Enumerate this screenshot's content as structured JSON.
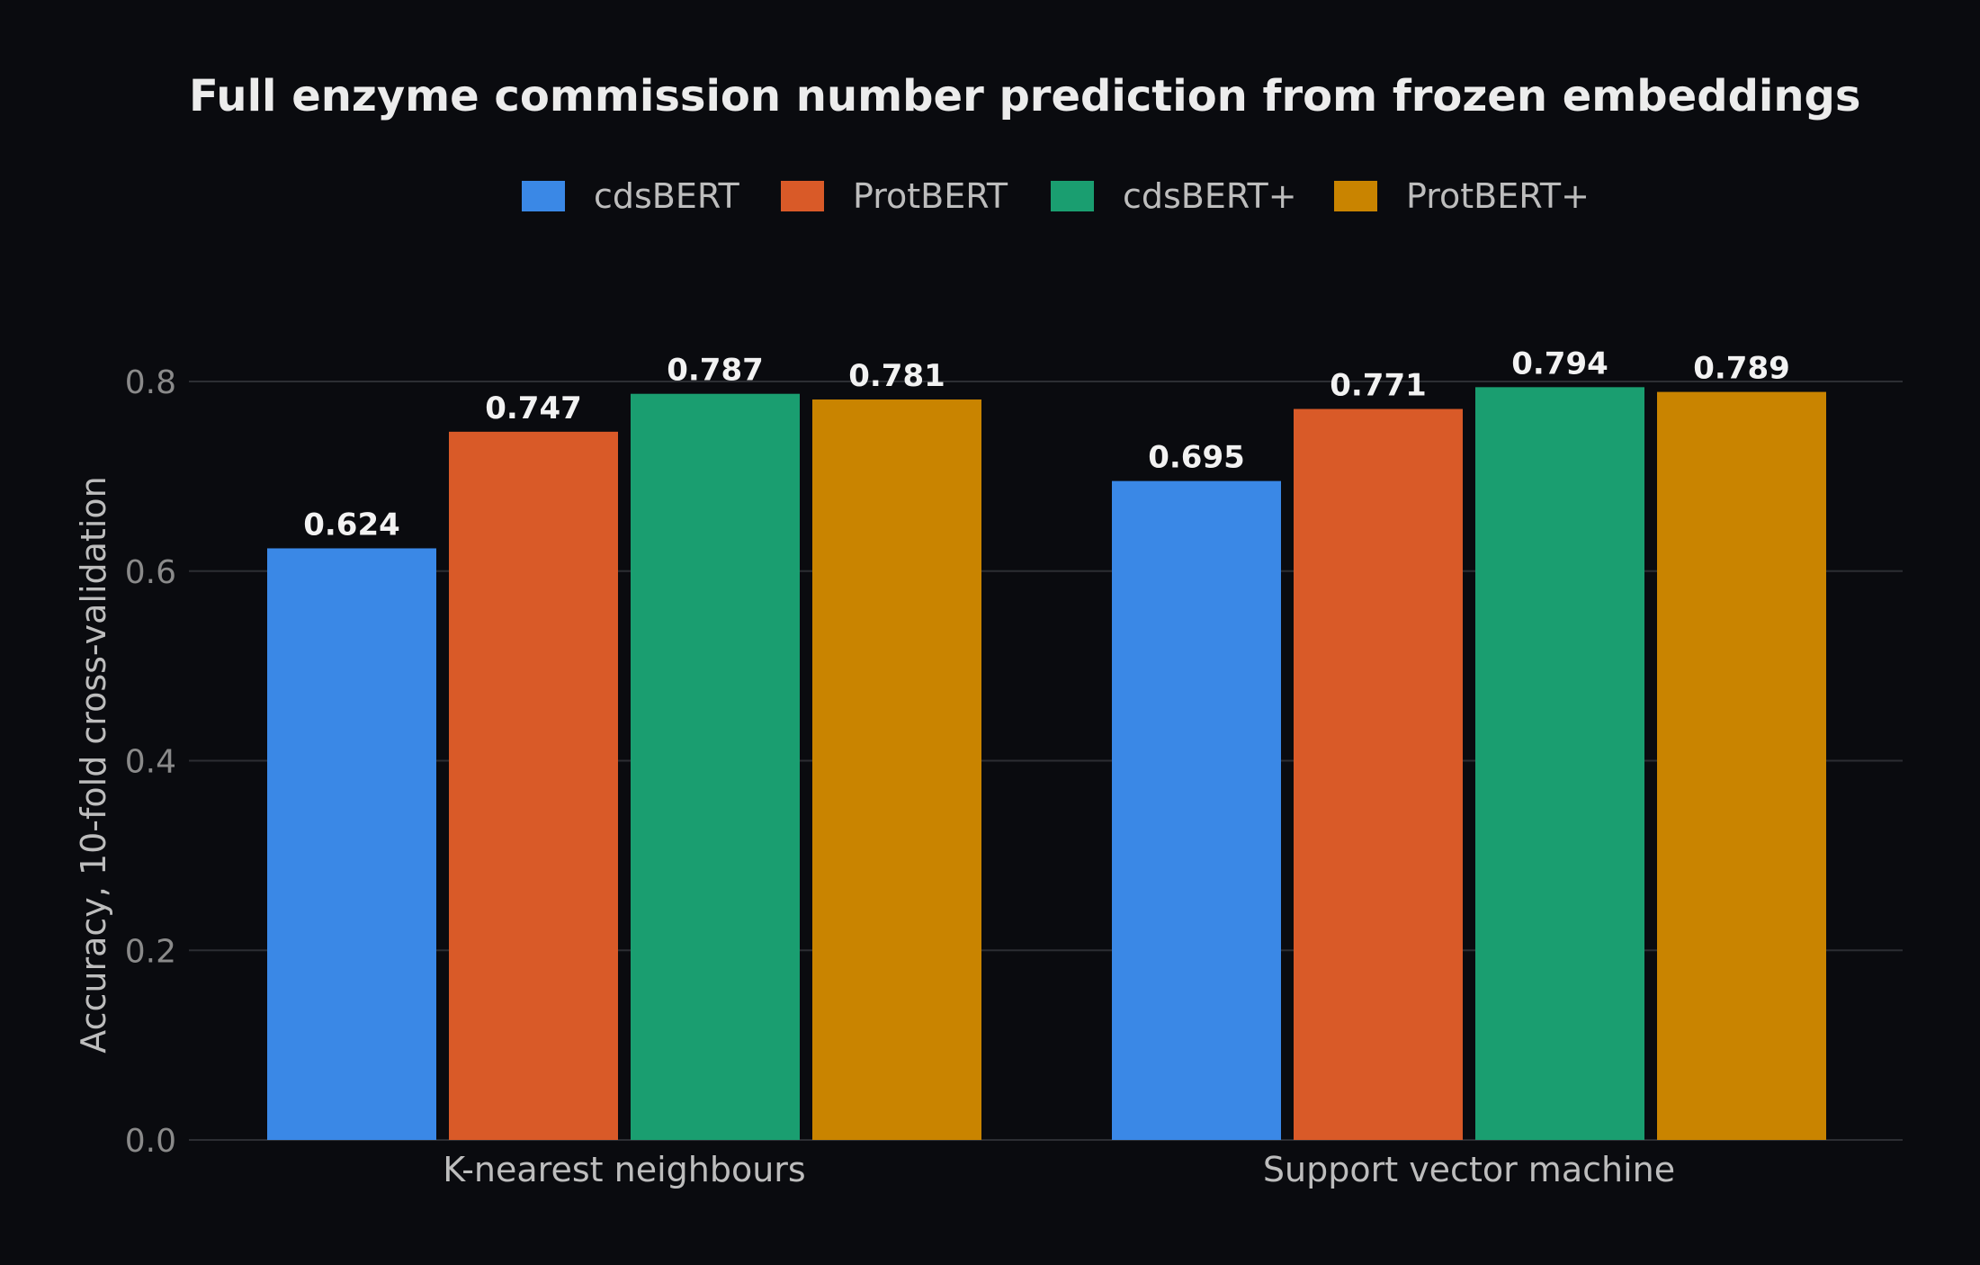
{
  "chart_data": {
    "type": "bar",
    "title": "Full enzyme commission number prediction from frozen embeddings",
    "xlabel": "",
    "ylabel": "Accuracy, 10-fold cross-validation",
    "categories": [
      "K-nearest neighbours",
      "Support vector machine"
    ],
    "series": [
      {
        "name": "cdsBERT",
        "color": "#3a88e6",
        "values": [
          0.624,
          0.695
        ],
        "labels": [
          "0.624",
          "0.695"
        ]
      },
      {
        "name": "ProtBERT",
        "color": "#d95a28",
        "values": [
          0.747,
          0.771
        ],
        "labels": [
          "0.747",
          "0.771"
        ]
      },
      {
        "name": "cdsBERT+",
        "color": "#1a9e70",
        "values": [
          0.787,
          0.794
        ],
        "labels": [
          "0.787",
          "0.794"
        ]
      },
      {
        "name": "ProtBERT+",
        "color": "#c98400",
        "values": [
          0.781,
          0.789
        ],
        "labels": [
          "0.781",
          "0.789"
        ]
      }
    ],
    "ylim": [
      0,
      0.8
    ],
    "yticks": [
      "0.0",
      "0.2",
      "0.4",
      "0.6",
      "0.8"
    ],
    "grid": true,
    "legend_position": "top-center"
  }
}
